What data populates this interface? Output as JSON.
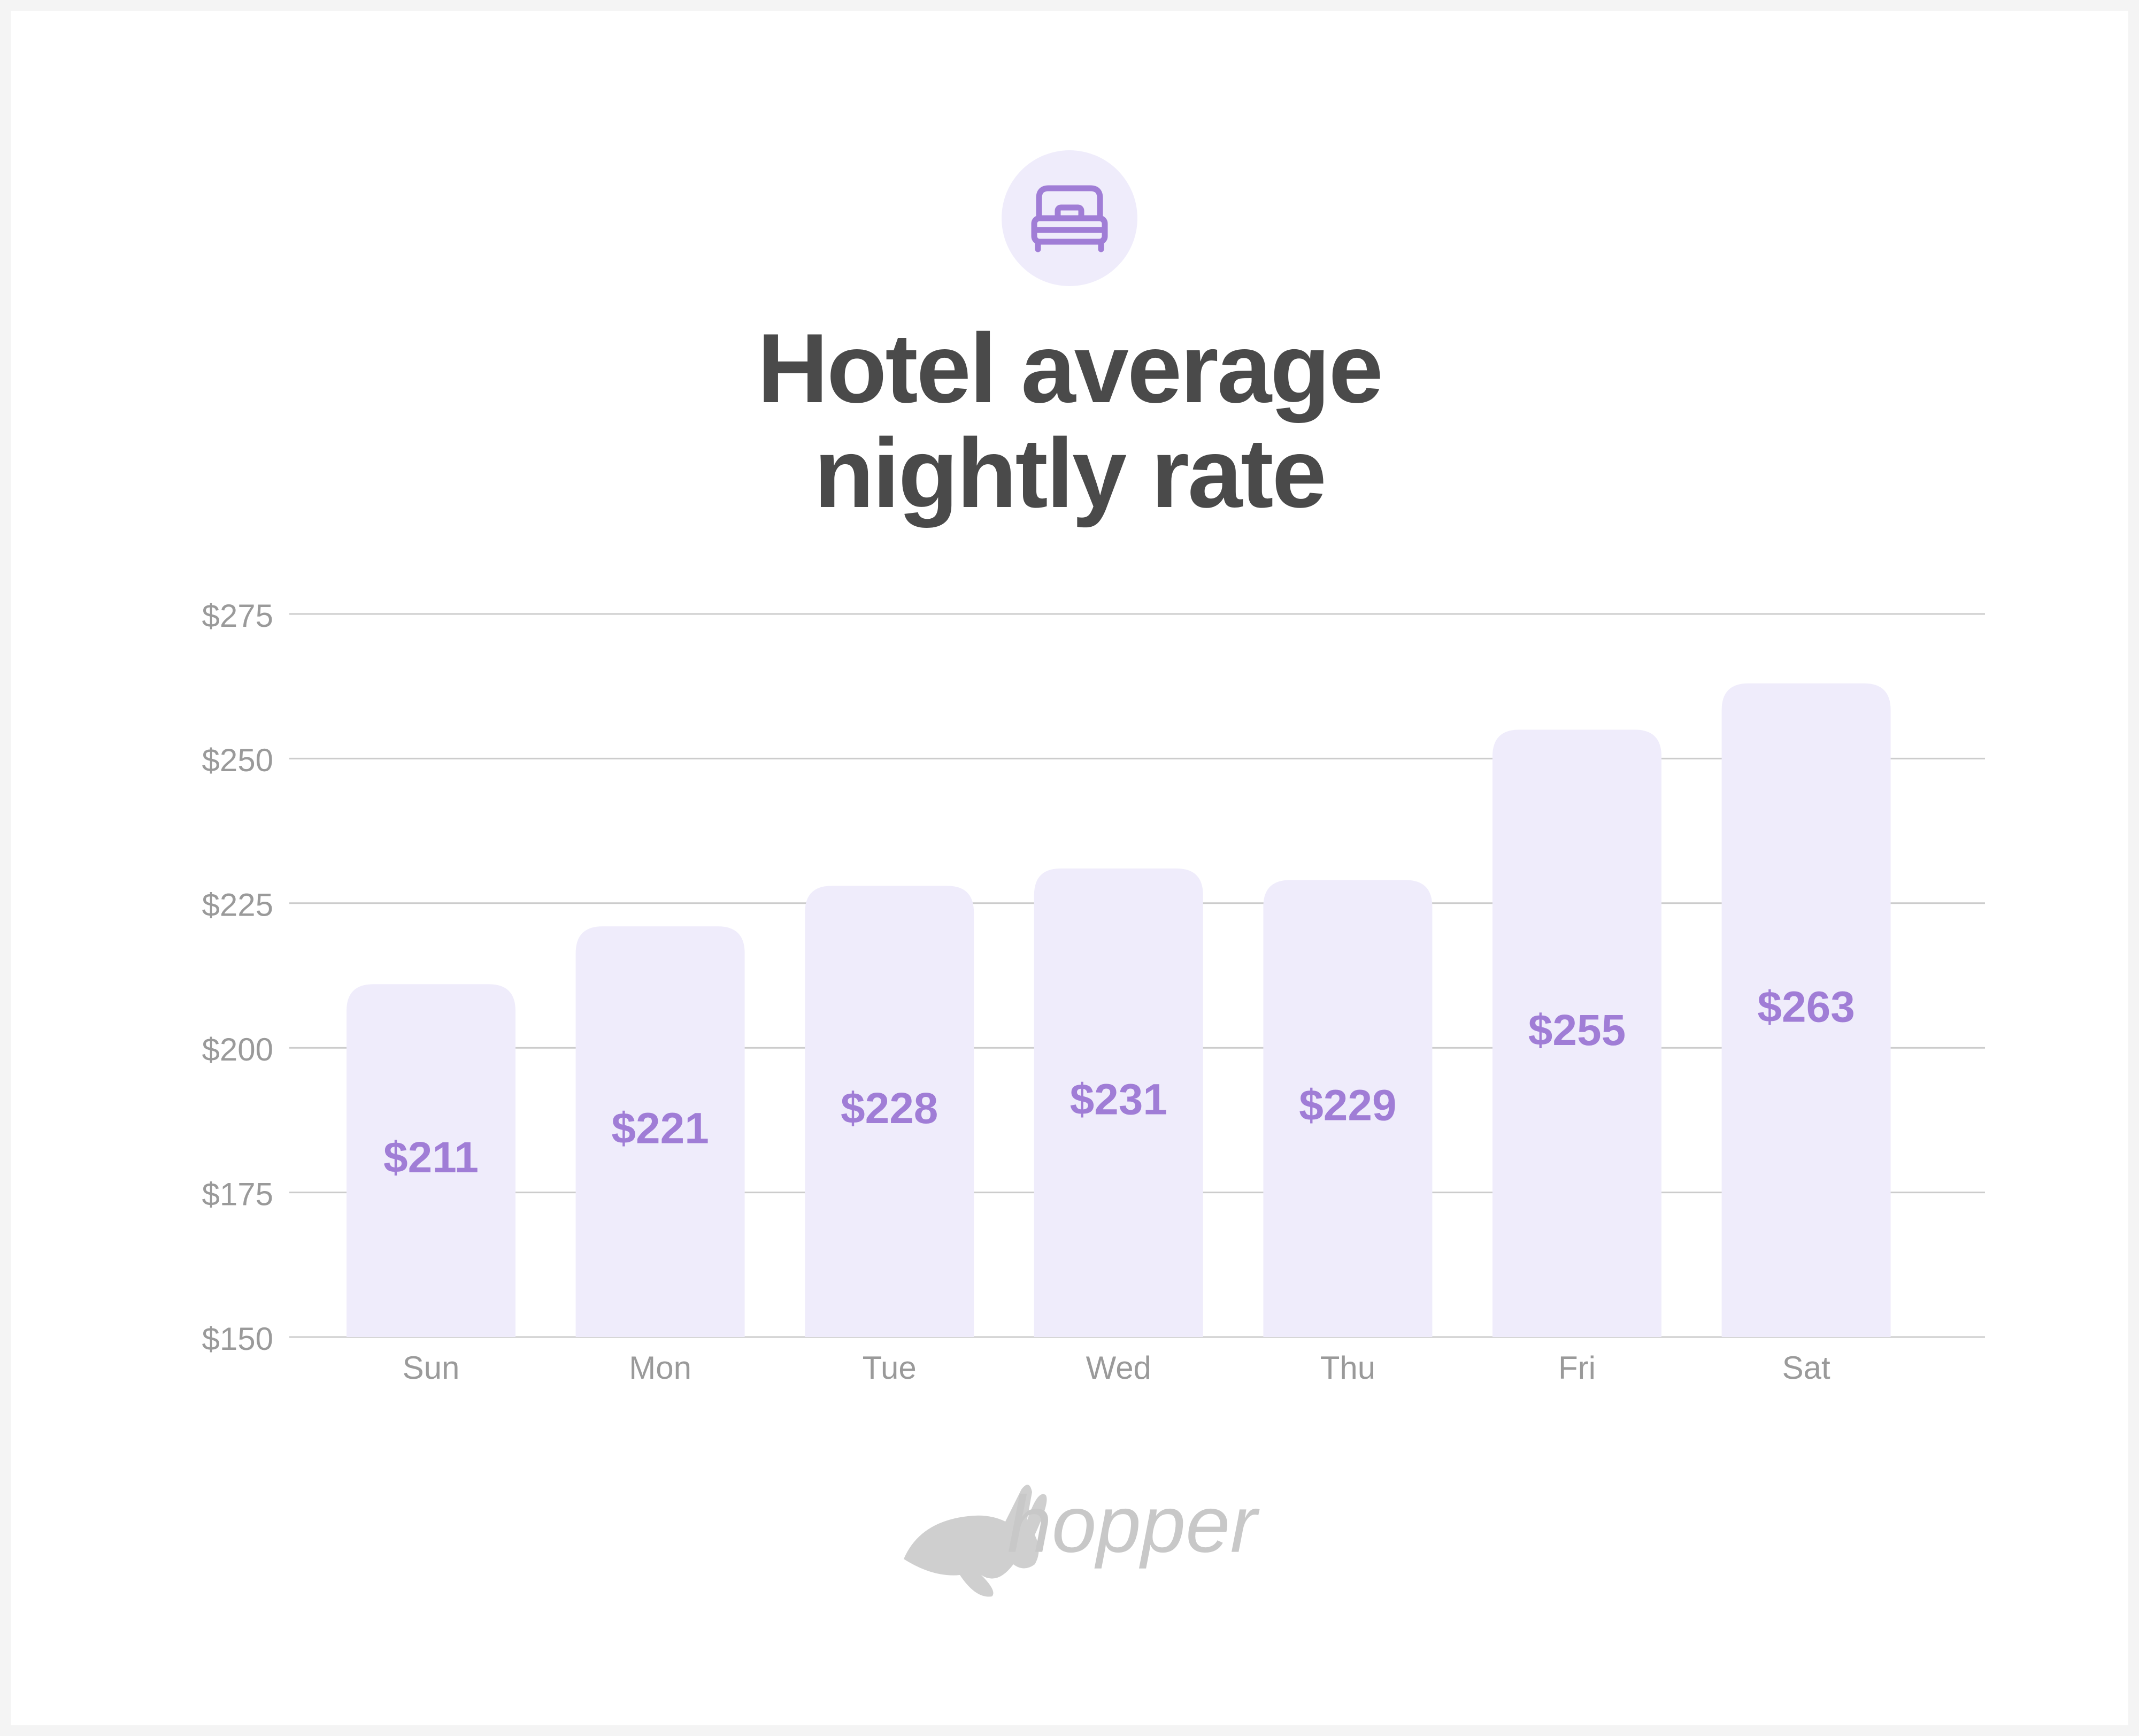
{
  "chart_data": {
    "type": "bar",
    "title": "Hotel average nightly rate",
    "categories": [
      "Sun",
      "Mon",
      "Tue",
      "Wed",
      "Thu",
      "Fri",
      "Sat"
    ],
    "values": [
      211,
      221,
      228,
      231,
      229,
      255,
      263
    ],
    "value_labels": [
      "$211",
      "$221",
      "$228",
      "$231",
      "$229",
      "$255",
      "$263"
    ],
    "color": "#efecfb",
    "label_color": "#a07dd6",
    "ylim": [
      150,
      275
    ],
    "yticks": [
      {
        "value": 150,
        "label": "$150"
      },
      {
        "value": 175,
        "label": "$175"
      },
      {
        "value": 200,
        "label": "$200"
      },
      {
        "value": 225,
        "label": "$225"
      },
      {
        "value": 250,
        "label": "$250"
      },
      {
        "value": 275,
        "label": "$275"
      }
    ],
    "grid": true
  },
  "logo": "hopper"
}
